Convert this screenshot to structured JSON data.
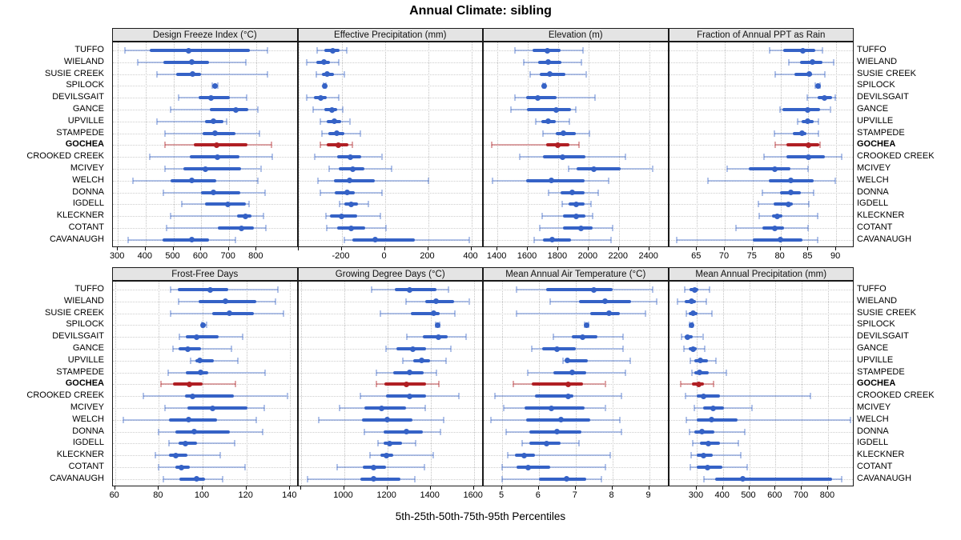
{
  "chart_data": {
    "type": "dot-interval-trellis",
    "title": "Annual Climate: sibling",
    "caption": "5th-25th-50th-75th-95th Percentiles",
    "legend_position": "none",
    "grid": "dotted",
    "colors": {
      "series": "#3562c6",
      "series_light": "rgba(53,98,198,0.38)",
      "highlight": "#b01f24",
      "highlight_light": "rgba(176,31,36,0.40)",
      "header_bg": "#e4e4e4",
      "panel_border": "#1a1a1a",
      "gridline": "#c3c3c3"
    },
    "sites": [
      "TUFFO",
      "WIELAND",
      "SUSIE CREEK",
      "SPILOCK",
      "DEVILSGAIT",
      "GANCE",
      "UPVILLE",
      "STAMPEDE",
      "GOCHEA",
      "CROOKED CREEK",
      "MCIVEY",
      "WELCH",
      "DONNA",
      "IGDELL",
      "KLECKNER",
      "COTANT",
      "CAVANAUGH"
    ],
    "highlight_site": "GOCHEA",
    "percentiles": [
      5,
      25,
      50,
      75,
      95
    ],
    "panels": [
      {
        "label": "Design Freeze Index (°C)",
        "band": "top",
        "xlim": [
          282,
          945
        ],
        "ticks": [
          300,
          400,
          500,
          600,
          700,
          800
        ],
        "unlabeled_ticks": [],
        "values": [
          [
            325,
            415,
            555,
            775,
            840
          ],
          [
            370,
            465,
            565,
            630,
            760
          ],
          [
            440,
            510,
            570,
            600,
            840
          ],
          [
            640,
            646,
            650,
            654,
            660
          ],
          [
            520,
            590,
            635,
            705,
            765
          ],
          [
            490,
            630,
            725,
            770,
            805
          ],
          [
            440,
            615,
            645,
            680,
            692
          ],
          [
            470,
            605,
            650,
            725,
            810
          ],
          [
            470,
            575,
            655,
            768,
            855
          ],
          [
            415,
            560,
            660,
            740,
            858
          ],
          [
            470,
            535,
            615,
            745,
            815
          ],
          [
            355,
            490,
            565,
            655,
            805
          ],
          [
            465,
            600,
            645,
            740,
            830
          ],
          [
            530,
            615,
            695,
            762,
            772
          ],
          [
            490,
            730,
            760,
            782,
            825
          ],
          [
            475,
            660,
            745,
            790,
            835
          ],
          [
            337,
            460,
            567,
            630,
            724
          ]
        ]
      },
      {
        "label": "Effective Precipitation (mm)",
        "band": "top",
        "xlim": [
          -400,
          450
        ],
        "ticks": [
          -200,
          0,
          200,
          400
        ],
        "unlabeled_ticks": [
          -400
        ],
        "values": [
          [
            -315,
            -280,
            -240,
            -210,
            -175
          ],
          [
            -360,
            -317,
            -280,
            -255,
            -212
          ],
          [
            -317,
            -292,
            -268,
            -237,
            -187
          ],
          [
            -284,
            -281,
            -279,
            -277,
            -274
          ],
          [
            -360,
            -327,
            -298,
            -268,
            -213
          ],
          [
            -330,
            -280,
            -245,
            -219,
            -194
          ],
          [
            -298,
            -268,
            -233,
            -200,
            -163
          ],
          [
            -292,
            -261,
            -224,
            -187,
            -113
          ],
          [
            -300,
            -268,
            -216,
            -170,
            -152
          ],
          [
            -323,
            -219,
            -160,
            -108,
            -15
          ],
          [
            -258,
            -212,
            -150,
            -93,
            31
          ],
          [
            -311,
            -237,
            -163,
            -48,
            203
          ],
          [
            -300,
            -230,
            -175,
            -138,
            -12
          ],
          [
            -209,
            -187,
            -157,
            -126,
            -77
          ],
          [
            -274,
            -255,
            -200,
            -126,
            -21
          ],
          [
            -268,
            -219,
            -154,
            -89,
            7
          ],
          [
            -187,
            -150,
            -46,
            137,
            392
          ]
        ]
      },
      {
        "label": "Elevation (m)",
        "band": "top",
        "xlim": [
          1310,
          2520
        ],
        "ticks": [
          1400,
          1600,
          1800,
          2000,
          2200,
          2400
        ],
        "unlabeled_ticks": [],
        "values": [
          [
            1517,
            1631,
            1728,
            1816,
            1964
          ],
          [
            1575,
            1667,
            1733,
            1821,
            1952
          ],
          [
            1614,
            1679,
            1746,
            1847,
            1982
          ],
          [
            1700,
            1704,
            1708,
            1712,
            1716
          ],
          [
            1514,
            1591,
            1667,
            1789,
            2043
          ],
          [
            1491,
            1596,
            1789,
            1886,
            1917
          ],
          [
            1653,
            1689,
            1736,
            1786,
            1873
          ],
          [
            1701,
            1786,
            1833,
            1917,
            2005
          ],
          [
            1365,
            1719,
            1799,
            1873,
            1938
          ],
          [
            1549,
            1698,
            1830,
            1982,
            2245
          ],
          [
            1868,
            1921,
            2035,
            2210,
            2420
          ],
          [
            1368,
            1588,
            1754,
            1973,
            2131
          ],
          [
            1737,
            1816,
            1894,
            1973,
            2066
          ],
          [
            1824,
            1868,
            1917,
            1973,
            2017
          ],
          [
            1693,
            1833,
            1921,
            1982,
            2026
          ],
          [
            1679,
            1833,
            1952,
            2026,
            2158
          ],
          [
            1640,
            1701,
            1763,
            1886,
            2149
          ]
        ]
      },
      {
        "label": "Fraction of Annual PPT as Rain",
        "band": "top",
        "xlim": [
          60,
          93
        ],
        "ticks": [
          65,
          70,
          75,
          80,
          85,
          90
        ],
        "unlabeled_ticks": [],
        "values": [
          [
            78,
            80.5,
            84,
            86.2,
            87.5
          ],
          [
            81.5,
            83.5,
            85.8,
            87.5,
            89.5
          ],
          [
            79,
            82.5,
            85.2,
            85.7,
            88
          ],
          [
            86.3,
            86.5,
            86.7,
            86.9,
            87.1
          ],
          [
            84.8,
            86.6,
            87.9,
            89.2,
            89.9
          ],
          [
            79.9,
            80.4,
            84.9,
            87.1,
            88.9
          ],
          [
            83,
            83.8,
            84.8,
            85.9,
            86.8
          ],
          [
            78.9,
            82.2,
            83.9,
            84.7,
            86.8
          ],
          [
            79,
            81,
            85,
            86.9,
            87.1
          ],
          [
            77,
            81.1,
            85,
            88,
            91
          ],
          [
            70.4,
            74.3,
            79,
            81.8,
            84.9
          ],
          [
            67,
            77.9,
            81.9,
            85.9,
            89.9
          ],
          [
            76.8,
            79.9,
            81.9,
            83.6,
            86
          ],
          [
            76,
            78.8,
            81.4,
            82.2,
            85.1
          ],
          [
            76.1,
            78.5,
            79.4,
            80.3,
            86.7
          ],
          [
            72,
            76.7,
            79,
            80.6,
            85
          ],
          [
            61.4,
            75,
            80,
            83.9,
            86.7
          ]
        ]
      },
      {
        "label": "Frost-Free Days",
        "band": "bottom",
        "xlim": [
          59,
          143
        ],
        "ticks": [
          60,
          80,
          100,
          120,
          140
        ],
        "unlabeled_ticks": [],
        "values": [
          [
            85.3,
            88.6,
            103.3,
            111.7,
            134.4
          ],
          [
            89,
            98,
            110.3,
            124.5,
            133.4
          ],
          [
            85.5,
            104.5,
            112.3,
            123.3,
            136.8
          ],
          [
            99.5,
            99.9,
            100.3,
            100.9,
            101.8
          ],
          [
            89.4,
            92.3,
            97.2,
            107.4,
            118.3
          ],
          [
            86.4,
            88.9,
            93.2,
            99.4,
            113.1
          ],
          [
            94.5,
            96.5,
            98.7,
            105.2,
            115.9
          ],
          [
            84.3,
            92.3,
            99,
            102.5,
            128.5
          ],
          [
            81,
            86.5,
            94,
            100,
            115
          ],
          [
            73,
            92,
            95.3,
            114.1,
            138.6
          ],
          [
            82.7,
            92.9,
            104.5,
            120.6,
            128.2
          ],
          [
            63.8,
            84.5,
            93.7,
            106.7,
            124.5
          ],
          [
            80,
            87.6,
            96.3,
            112.3,
            127.4
          ],
          [
            84.5,
            89,
            92,
            97.4,
            114.7
          ],
          [
            78.4,
            84.5,
            87.6,
            92.9,
            107.9
          ],
          [
            80,
            87.6,
            90.4,
            94.1,
            119.3
          ],
          [
            82.2,
            89.2,
            97.2,
            100.9,
            109
          ]
        ]
      },
      {
        "label": "Growing Degree Days (°C)",
        "band": "bottom",
        "xlim": [
          789,
          1638
        ],
        "ticks": [
          1000,
          1200,
          1400,
          1600
        ],
        "unlabeled_ticks": [
          800
        ],
        "values": [
          [
            1126,
            1235,
            1302,
            1428,
            1484
          ],
          [
            1286,
            1376,
            1426,
            1509,
            1577
          ],
          [
            1169,
            1307,
            1414,
            1441,
            1512
          ],
          [
            1424,
            1429,
            1433,
            1437,
            1442
          ],
          [
            1290,
            1364,
            1437,
            1478,
            1564
          ],
          [
            1194,
            1241,
            1317,
            1381,
            1494
          ],
          [
            1270,
            1320,
            1358,
            1398,
            1472
          ],
          [
            1151,
            1228,
            1302,
            1367,
            1428
          ],
          [
            1151,
            1185,
            1290,
            1379,
            1438
          ],
          [
            1077,
            1194,
            1302,
            1379,
            1530
          ],
          [
            978,
            1093,
            1175,
            1286,
            1377
          ],
          [
            883,
            1083,
            1198,
            1315,
            1459
          ],
          [
            1093,
            1181,
            1290,
            1364,
            1444
          ],
          [
            1157,
            1181,
            1212,
            1268,
            1330
          ],
          [
            1120,
            1167,
            1194,
            1228,
            1413
          ],
          [
            969,
            1086,
            1136,
            1194,
            1370
          ],
          [
            830,
            1077,
            1138,
            1262,
            1327
          ]
        ]
      },
      {
        "label": "Mean Annual Air Temperature (°C)",
        "band": "bottom",
        "xlim": [
          4.5,
          9.5
        ],
        "ticks": [
          5,
          6,
          7,
          8,
          9
        ],
        "unlabeled_ticks": [],
        "values": [
          [
            5.4,
            6.2,
            7.5,
            8.0,
            9.1
          ],
          [
            6.3,
            7.1,
            7.8,
            8.5,
            9.2
          ],
          [
            5.4,
            7.4,
            7.9,
            8.2,
            8.9
          ],
          [
            7.25,
            7.28,
            7.3,
            7.32,
            7.35
          ],
          [
            6.4,
            6.9,
            7.2,
            7.6,
            8.3
          ],
          [
            5.8,
            6.1,
            6.5,
            7.0,
            8.3
          ],
          [
            6.66,
            6.72,
            6.78,
            7.34,
            8.48
          ],
          [
            5.7,
            6.4,
            6.9,
            7.3,
            8.35
          ],
          [
            5.3,
            5.8,
            6.8,
            7.2,
            7.8
          ],
          [
            4.8,
            5.9,
            6.8,
            6.95,
            8.25
          ],
          [
            5.05,
            5.6,
            6.35,
            7.25,
            7.8
          ],
          [
            4.7,
            5.65,
            6.6,
            7.4,
            8.2
          ],
          [
            5.1,
            5.75,
            6.5,
            7.15,
            8.25
          ],
          [
            5.55,
            5.75,
            6.2,
            6.6,
            7.1
          ],
          [
            5.15,
            5.35,
            5.6,
            5.9,
            7.95
          ],
          [
            5.0,
            5.4,
            5.7,
            6.3,
            7.8
          ],
          [
            5.0,
            6.0,
            6.75,
            7.3,
            7.7
          ]
        ]
      },
      {
        "label": "Mean Annual Precipitation (mm)",
        "band": "bottom",
        "xlim": [
          195,
          895
        ],
        "ticks": [
          300,
          400,
          500,
          600,
          700,
          800
        ],
        "unlabeled_ticks": [],
        "values": [
          [
            255,
            274,
            292,
            307,
            348
          ],
          [
            227,
            255,
            279,
            297,
            336
          ],
          [
            261,
            271,
            287,
            302,
            357
          ],
          [
            274,
            277,
            279,
            281,
            284
          ],
          [
            243,
            254,
            266,
            285,
            323
          ],
          [
            251,
            271,
            287,
            300,
            330
          ],
          [
            276,
            292,
            315,
            343,
            374
          ],
          [
            281,
            292,
            310,
            346,
            412
          ],
          [
            240,
            281,
            307,
            328,
            364
          ],
          [
            256,
            300,
            325,
            390,
            733
          ],
          [
            290,
            326,
            364,
            403,
            511
          ],
          [
            261,
            300,
            357,
            455,
            885
          ],
          [
            274,
            292,
            321,
            367,
            482
          ],
          [
            285,
            312,
            343,
            390,
            460
          ],
          [
            279,
            300,
            326,
            362,
            467
          ],
          [
            276,
            300,
            341,
            398,
            493
          ],
          [
            328,
            369,
            475,
            816,
            851
          ]
        ]
      }
    ]
  }
}
